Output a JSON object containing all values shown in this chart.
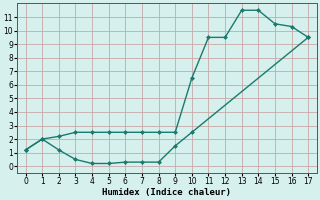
{
  "xlabel": "Humidex (Indice chaleur)",
  "background_color": "#d6f0ee",
  "grid_color": "#c8a8a8",
  "line_color": "#1a7a6e",
  "xlim": [
    -0.5,
    17.5
  ],
  "ylim": [
    -0.5,
    12.0
  ],
  "xticks": [
    0,
    1,
    2,
    3,
    4,
    5,
    6,
    7,
    8,
    9,
    10,
    11,
    12,
    13,
    14,
    15,
    16,
    17
  ],
  "yticks": [
    0,
    1,
    2,
    3,
    4,
    5,
    6,
    7,
    8,
    9,
    10,
    11
  ],
  "line1_x": [
    0,
    1,
    2,
    3,
    4,
    5,
    6,
    7,
    8,
    9,
    10,
    11,
    12,
    13,
    14,
    15,
    16,
    17
  ],
  "line1_y": [
    1.2,
    2.0,
    2.2,
    2.5,
    2.5,
    2.5,
    2.5,
    2.5,
    2.5,
    2.5,
    6.5,
    9.5,
    9.5,
    11.5,
    11.5,
    10.5,
    10.3,
    9.5
  ],
  "line2_x": [
    0,
    1,
    2,
    3,
    4,
    5,
    6,
    7,
    8,
    9,
    10,
    17
  ],
  "line2_y": [
    1.2,
    2.0,
    1.2,
    0.5,
    0.2,
    0.2,
    0.3,
    0.3,
    0.3,
    1.5,
    2.5,
    9.5
  ],
  "marker_size": 2.5,
  "line_width": 1.0
}
